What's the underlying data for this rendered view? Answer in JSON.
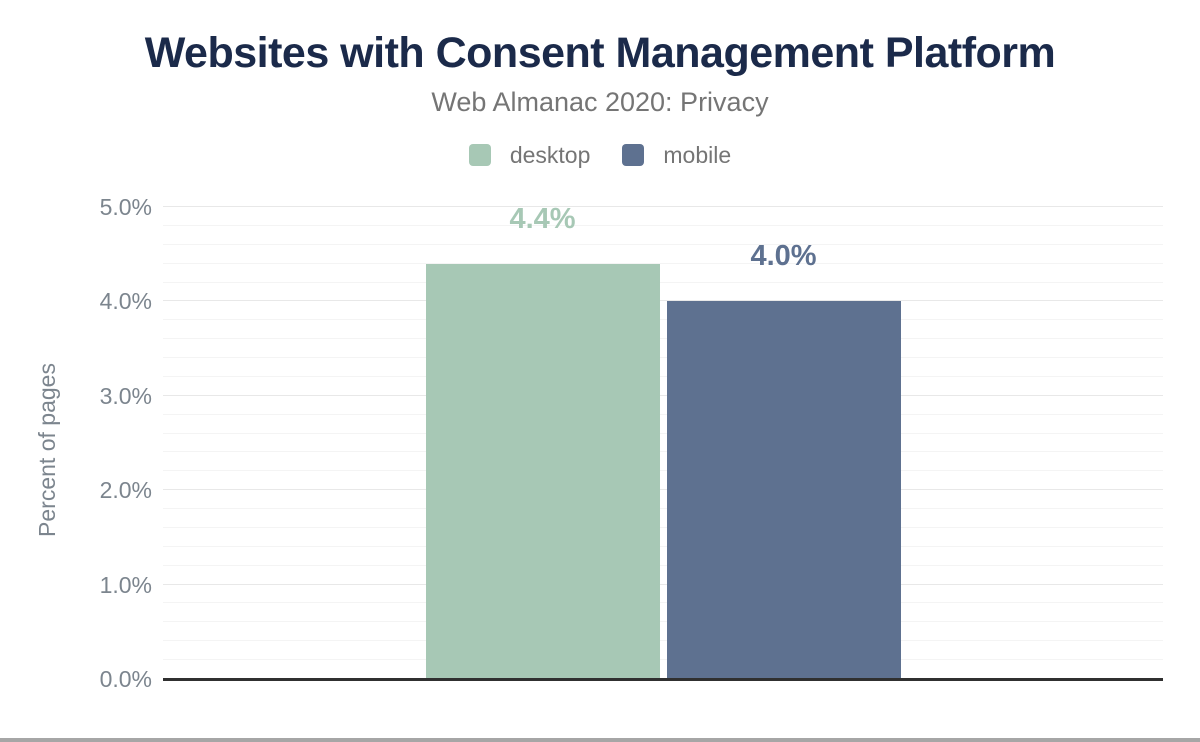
{
  "chart_data": {
    "type": "bar",
    "title": "Websites with Consent Management Platform",
    "subtitle": "Web Almanac 2020: Privacy",
    "ylabel": "Percent of pages",
    "ylim": [
      0,
      5
    ],
    "series": [
      {
        "name": "desktop",
        "values": [
          4.4
        ],
        "value_label": "4.4%",
        "color": "#a7c8b5"
      },
      {
        "name": "mobile",
        "values": [
          4.0
        ],
        "value_label": "4.0%",
        "color": "#5e7190"
      }
    ],
    "yticks": [
      {
        "value": 0,
        "label": "0.0%"
      },
      {
        "value": 1,
        "label": "1.0%"
      },
      {
        "value": 2,
        "label": "2.0%"
      },
      {
        "value": 3,
        "label": "3.0%"
      },
      {
        "value": 4,
        "label": "4.0%"
      },
      {
        "value": 5,
        "label": "5.0%"
      }
    ],
    "minor_tick_step": 0.2,
    "grid": true,
    "legend_position": "top"
  },
  "colors": {
    "background": "#ffffff",
    "title_text": "#1b2a4a",
    "subtitle_text": "#757575",
    "legend_text": "#757575",
    "tick_text": "#7c858e",
    "axis_line": "#303030",
    "gridline_major": "#e8e8e8",
    "gridline_minor": "#f4f4f4",
    "bottom_edge": "#a6a6a6"
  }
}
